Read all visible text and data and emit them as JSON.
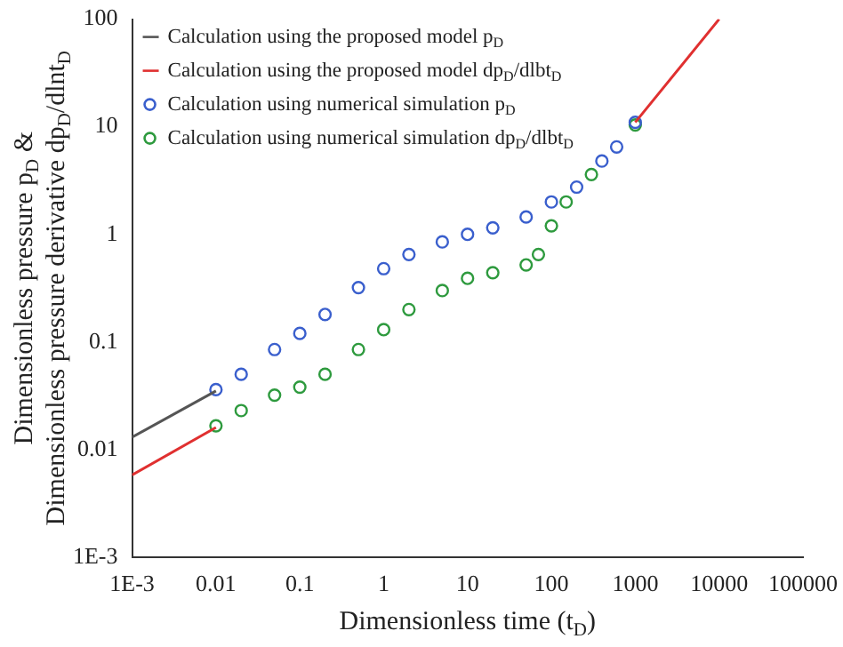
{
  "chart_data": {
    "type": "line",
    "xlabel": "Dimensionless time (t$_{D}$)",
    "ylabel": "Dimensionless pressure p$_{D}$ &\nDimensionless pressure derivative dp$_{D}$/dlnt$_{D}$",
    "log": "xy",
    "grid": false,
    "legend": "top left",
    "xlim": [
      0.001,
      100000
    ],
    "xticks": [
      {
        "value": 0.001,
        "label": "1E-3"
      },
      0.01,
      0.1,
      1,
      10,
      100,
      1000,
      10000,
      100000
    ],
    "ylim": [
      0.001,
      100
    ],
    "yticks": [
      {
        "value": 0.001,
        "label": "1E-3"
      },
      0.01,
      0.1,
      1,
      10,
      100
    ],
    "series": [
      {
        "name": "Calculation using the proposed model p$_{D}$",
        "color": "#555555",
        "marker": "none",
        "x": [
          0.001,
          0.01
        ],
        "values": [
          0.013,
          0.035
        ]
      },
      {
        "name": "Calculation using the proposed model dp$_{D}$/dlbt$_{D}$",
        "color": "#e03030",
        "marker": "none",
        "x": [
          0.001,
          0.01,
          100,
          1000,
          10000
        ],
        "values": [
          0.0058,
          0.016,
          null,
          11,
          100
        ]
      },
      {
        "name": "Calculation using numerical simulation p$_{D}$",
        "type": "scatter",
        "color": "#3a5fcd",
        "marker": "circle",
        "x": [
          0.01,
          0.02,
          0.05,
          0.1,
          0.2,
          0.5,
          1,
          2,
          5,
          10,
          20,
          50,
          100,
          200,
          400,
          600,
          1000
        ],
        "values": [
          0.036,
          0.05,
          0.085,
          0.12,
          0.18,
          0.32,
          0.48,
          0.65,
          0.85,
          1.0,
          1.15,
          1.45,
          2.0,
          2.75,
          4.8,
          6.5,
          11
        ]
      },
      {
        "name": "Calculation using numerical simulation dp$_{D}$/dlbt$_{D}$",
        "type": "scatter",
        "color": "#2e9a3e",
        "marker": "circle",
        "x": [
          0.01,
          0.02,
          0.05,
          0.1,
          0.2,
          0.5,
          1,
          2,
          5,
          10,
          20,
          50,
          70,
          100,
          150,
          300,
          1000
        ],
        "values": [
          0.0166,
          0.023,
          0.032,
          0.038,
          0.05,
          0.085,
          0.13,
          0.2,
          0.3,
          0.39,
          0.44,
          0.52,
          0.65,
          1.2,
          2.0,
          3.6,
          10.4
        ]
      }
    ]
  }
}
